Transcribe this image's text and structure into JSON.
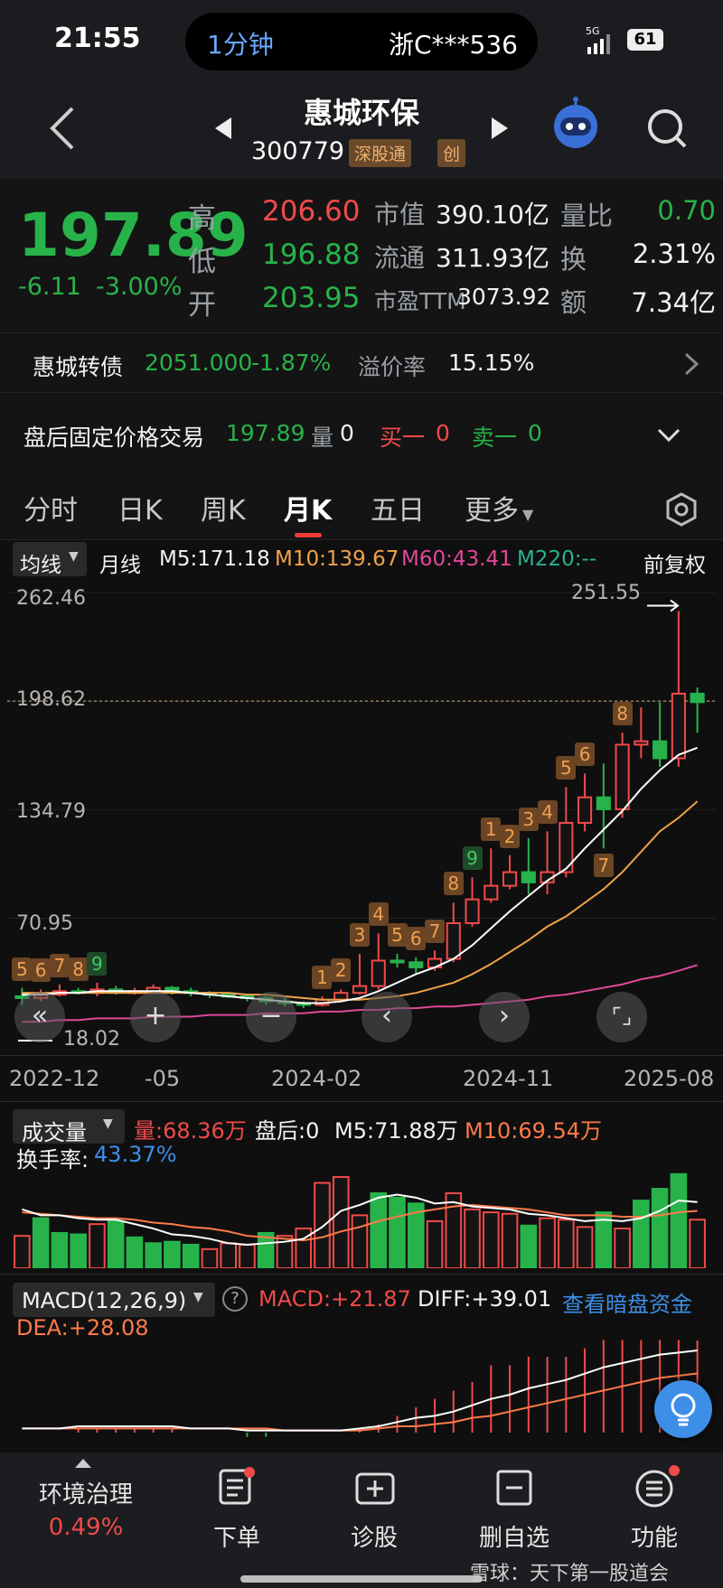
{
  "status_bar": {
    "time": "21:55",
    "island_left": "1分钟",
    "island_right": "浙C***536",
    "network": "5G",
    "battery": "61"
  },
  "header": {
    "name": "惠城环保",
    "code": "300779",
    "tag_connect": "深股通",
    "tag_board": "创"
  },
  "quote": {
    "price": "197.89",
    "change": "-6.11",
    "change_pct": "-3.00%",
    "high_label": "高",
    "high": "206.60",
    "low_label": "低",
    "low": "196.88",
    "open_label": "开",
    "open": "203.95",
    "mcap_label": "市值",
    "mcap": "390.10亿",
    "float_label": "流通",
    "float": "311.93亿",
    "pe_label": "市盈TTM",
    "pe": "3073.92",
    "vol_ratio_label": "量比",
    "vol_ratio": "0.70",
    "turnover_label": "换",
    "turnover": "2.31%",
    "amount_label": "额",
    "amount": "7.34亿"
  },
  "bond": {
    "name": "惠城转债",
    "price": "2051.000",
    "change_pct": "-1.87%",
    "premium_label": "溢价率",
    "premium": "15.15%"
  },
  "after_hours": {
    "label": "盘后固定价格交易",
    "price": "197.89",
    "vol_label": "量",
    "vol": "0",
    "buy_label": "买一",
    "buy": "0",
    "sell_label": "卖一",
    "sell": "0"
  },
  "tabs": [
    "分时",
    "日K",
    "周K",
    "月K",
    "五日",
    "更多"
  ],
  "active_tab": "月K",
  "ma_legend": {
    "selector": "均线",
    "period": "月线",
    "m5": "M5:171.18",
    "m10": "M10:139.67",
    "m60": "M60:43.41",
    "m220": "M220:--",
    "adjust": "前复权"
  },
  "chart_colors": {
    "up": "#f04a4a",
    "down": "#27b34a",
    "m5": "#ffffff",
    "m10": "#f0a24a",
    "m60": "#e0479b"
  },
  "chart_data": {
    "type": "candlestick",
    "y_ticks": [
      "262.46",
      "198.62",
      "134.79",
      "70.95"
    ],
    "x_ticks": [
      "2022-12",
      "-05",
      "2024-02",
      "2024-11",
      "2025-08"
    ],
    "max_label": "251.55",
    "min_label": "18.02",
    "last_price_line": 198.62,
    "ylim": [
      0,
      262.46
    ],
    "candles": [
      [
        25,
        24,
        30,
        20
      ],
      [
        24,
        26,
        29,
        22
      ],
      [
        26,
        28,
        32,
        25
      ],
      [
        28,
        27,
        30,
        26
      ],
      [
        27,
        29,
        33,
        25
      ],
      [
        29,
        27,
        31,
        26
      ],
      [
        27,
        28,
        30,
        26
      ],
      [
        28,
        30,
        32,
        27
      ],
      [
        30,
        28,
        31,
        26
      ],
      [
        28,
        27,
        30,
        25
      ],
      [
        27,
        26,
        28,
        24
      ],
      [
        26,
        25,
        27,
        24
      ],
      [
        25,
        24,
        26,
        22
      ],
      [
        24,
        22,
        25,
        20
      ],
      [
        22,
        21,
        24,
        19
      ],
      [
        21,
        20,
        22,
        18
      ],
      [
        20,
        23,
        25,
        19
      ],
      [
        23,
        27,
        29,
        22
      ],
      [
        27,
        31,
        50,
        26
      ],
      [
        31,
        46,
        62,
        29
      ],
      [
        46,
        45,
        50,
        42
      ],
      [
        45,
        42,
        48,
        38
      ],
      [
        42,
        47,
        52,
        40
      ],
      [
        47,
        68,
        80,
        45
      ],
      [
        68,
        82,
        95,
        66
      ],
      [
        82,
        90,
        112,
        80
      ],
      [
        90,
        98,
        108,
        88
      ],
      [
        98,
        92,
        118,
        85
      ],
      [
        92,
        98,
        122,
        85
      ],
      [
        98,
        127,
        148,
        95
      ],
      [
        127,
        142,
        156,
        122
      ],
      [
        142,
        135,
        162,
        112
      ],
      [
        135,
        173,
        180,
        130
      ],
      [
        173,
        175,
        195,
        165
      ],
      [
        175,
        165,
        198,
        160
      ],
      [
        165,
        203,
        251.55,
        160
      ],
      [
        203,
        198,
        206.6,
        180
      ]
    ],
    "ma5": [
      26,
      26,
      27,
      27,
      28,
      28,
      28,
      28,
      28,
      27,
      26,
      25,
      24,
      23,
      22,
      21,
      21,
      22,
      24,
      28,
      33,
      38,
      42,
      47,
      55,
      65,
      75,
      84,
      93,
      100,
      112,
      123,
      134,
      147,
      158,
      167,
      171.18
    ],
    "ma10": [
      27,
      27,
      27,
      27,
      27,
      27,
      27,
      27,
      27,
      27,
      27,
      27,
      26,
      26,
      25,
      24,
      23,
      23,
      23,
      24,
      25,
      27,
      30,
      33,
      38,
      44,
      51,
      58,
      66,
      72,
      80,
      88,
      98,
      110,
      122,
      130,
      139.67
    ],
    "ma60": [
      10,
      10,
      11,
      11,
      12,
      12,
      12,
      13,
      13,
      13,
      14,
      14,
      14,
      15,
      15,
      15,
      16,
      16,
      17,
      17,
      18,
      18,
      19,
      19,
      20,
      21,
      22,
      23,
      25,
      26,
      28,
      30,
      32,
      35,
      37,
      40,
      43.41
    ],
    "markers": [
      {
        "i": 0,
        "t": "5",
        "g": false,
        "pos": "top"
      },
      {
        "i": 1,
        "t": "6",
        "g": false,
        "pos": "top"
      },
      {
        "i": 2,
        "t": "7",
        "g": false,
        "pos": "top"
      },
      {
        "i": 3,
        "t": "8",
        "g": false,
        "pos": "top"
      },
      {
        "i": 4,
        "t": "9",
        "g": true,
        "pos": "top"
      },
      {
        "i": 16,
        "t": "1",
        "g": false,
        "pos": "top"
      },
      {
        "i": 17,
        "t": "2",
        "g": false,
        "pos": "top"
      },
      {
        "i": 18,
        "t": "3",
        "g": false,
        "pos": "top"
      },
      {
        "i": 19,
        "t": "4",
        "g": false,
        "pos": "top"
      },
      {
        "i": 20,
        "t": "5",
        "g": false,
        "pos": "top"
      },
      {
        "i": 21,
        "t": "6",
        "g": false,
        "pos": "top"
      },
      {
        "i": 22,
        "t": "7",
        "g": false,
        "pos": "top"
      },
      {
        "i": 23,
        "t": "8",
        "g": false,
        "pos": "top"
      },
      {
        "i": 24,
        "t": "9",
        "g": true,
        "pos": "top"
      },
      {
        "i": 25,
        "t": "1",
        "g": false,
        "pos": "top"
      },
      {
        "i": 26,
        "t": "2",
        "g": false,
        "pos": "top"
      },
      {
        "i": 27,
        "t": "3",
        "g": false,
        "pos": "top"
      },
      {
        "i": 28,
        "t": "4",
        "g": false,
        "pos": "top"
      },
      {
        "i": 29,
        "t": "5",
        "g": false,
        "pos": "top"
      },
      {
        "i": 30,
        "t": "6",
        "g": false,
        "pos": "top"
      },
      {
        "i": 31,
        "t": "7",
        "g": false,
        "pos": "bottom"
      },
      {
        "i": 32,
        "t": "8",
        "g": false,
        "pos": "top"
      }
    ],
    "volume": [
      22,
      34,
      24,
      23,
      30,
      32,
      21,
      17,
      18,
      16,
      13,
      17,
      16,
      24,
      22,
      27,
      58,
      62,
      36,
      51,
      48,
      44,
      32,
      51,
      40,
      38,
      37,
      29,
      34,
      33,
      28,
      38,
      27,
      46,
      54,
      64,
      33
    ],
    "volume_up": [
      true,
      false,
      false,
      false,
      true,
      false,
      false,
      false,
      false,
      false,
      true,
      true,
      true,
      false,
      true,
      true,
      true,
      true,
      true,
      false,
      false,
      false,
      true,
      true,
      true,
      true,
      true,
      false,
      true,
      true,
      true,
      false,
      true,
      false,
      false,
      false,
      true
    ],
    "vol_ma5": [
      40,
      36,
      36,
      34,
      33,
      33,
      30,
      27,
      23,
      22,
      20,
      17,
      16,
      17,
      18,
      20,
      28,
      39,
      43,
      48,
      50,
      48,
      44,
      45,
      42,
      41,
      40,
      37,
      36,
      34,
      32,
      33,
      32,
      34,
      39,
      46,
      45
    ],
    "vol_ma10": [
      38,
      37,
      36,
      35,
      34,
      34,
      33,
      31,
      30,
      28,
      27,
      25,
      22,
      21,
      20,
      19,
      21,
      25,
      28,
      32,
      35,
      38,
      40,
      42,
      43,
      42,
      41,
      40,
      38,
      36,
      36,
      36,
      35,
      35,
      36,
      38,
      39
    ],
    "macd_diff": [
      2,
      2,
      2,
      3,
      3,
      3,
      3,
      3,
      3,
      2,
      2,
      2,
      1,
      1,
      1,
      1,
      1,
      1,
      2,
      3,
      5,
      7,
      8,
      10,
      13,
      16,
      18,
      21,
      23,
      25,
      28,
      31,
      33,
      35,
      37,
      38,
      39.01
    ],
    "macd_dea": [
      2,
      2,
      2,
      2,
      2,
      2,
      2,
      2,
      2,
      2,
      2,
      2,
      2,
      2,
      1,
      1,
      1,
      1,
      1,
      2,
      3,
      3,
      4,
      5,
      7,
      8,
      10,
      12,
      14,
      16,
      18,
      20,
      22,
      24,
      26,
      27,
      28.08
    ],
    "macd_hist": [
      0,
      0,
      0,
      1,
      1,
      1,
      1,
      1,
      1,
      0,
      0,
      0,
      -1,
      -1,
      0,
      0,
      0,
      0,
      1,
      2,
      4,
      6,
      8,
      10,
      12,
      16,
      16,
      18,
      18,
      18,
      20,
      22,
      22,
      22,
      22,
      22,
      21.87
    ]
  },
  "volume_legend": {
    "selector": "成交量",
    "vol": "量:68.36万",
    "after": "盘后:0",
    "m5": "M5:71.88万",
    "m10": "M10:69.54万",
    "turnover_label": "换手率:",
    "turnover": "43.37%"
  },
  "macd_legend": {
    "selector": "MACD(12,26,9)",
    "help": "?",
    "macd": "MACD:+21.87",
    "diff": "DIFF:+39.01",
    "dark_pool": "查看暗盘资金",
    "dea": "DEA:+28.08"
  },
  "bottom_bar": {
    "sector": "环境治理",
    "sector_pct": "0.49%",
    "order": "下单",
    "diagnose": "诊股",
    "remove_watch": "删自选",
    "functions": "功能",
    "watermark": "雪球：天下第一股道会"
  }
}
